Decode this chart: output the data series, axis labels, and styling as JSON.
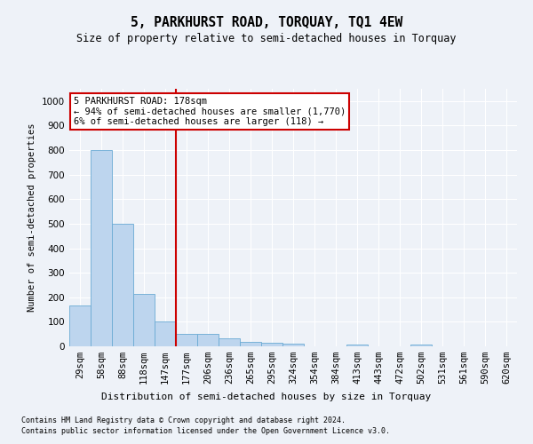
{
  "title": "5, PARKHURST ROAD, TORQUAY, TQ1 4EW",
  "subtitle": "Size of property relative to semi-detached houses in Torquay",
  "xlabel": "Distribution of semi-detached houses by size in Torquay",
  "ylabel": "Number of semi-detached properties",
  "categories": [
    "29sqm",
    "58sqm",
    "88sqm",
    "118sqm",
    "147sqm",
    "177sqm",
    "206sqm",
    "236sqm",
    "265sqm",
    "295sqm",
    "324sqm",
    "354sqm",
    "384sqm",
    "413sqm",
    "443sqm",
    "472sqm",
    "502sqm",
    "531sqm",
    "561sqm",
    "590sqm",
    "620sqm"
  ],
  "values": [
    165,
    800,
    500,
    215,
    100,
    50,
    50,
    33,
    18,
    13,
    10,
    0,
    0,
    8,
    0,
    0,
    8,
    0,
    0,
    0,
    0
  ],
  "bar_color": "#bdd5ee",
  "bar_edge_color": "#6aaad4",
  "vline_color": "#cc0000",
  "annotation_title": "5 PARKHURST ROAD: 178sqm",
  "annotation_line1": "← 94% of semi-detached houses are smaller (1,770)",
  "annotation_line2": "6% of semi-detached houses are larger (118) →",
  "annotation_box_color": "#ffffff",
  "annotation_box_edge": "#cc0000",
  "ylim": [
    0,
    1050
  ],
  "footer1": "Contains HM Land Registry data © Crown copyright and database right 2024.",
  "footer2": "Contains public sector information licensed under the Open Government Licence v3.0.",
  "bg_color": "#eef2f8"
}
